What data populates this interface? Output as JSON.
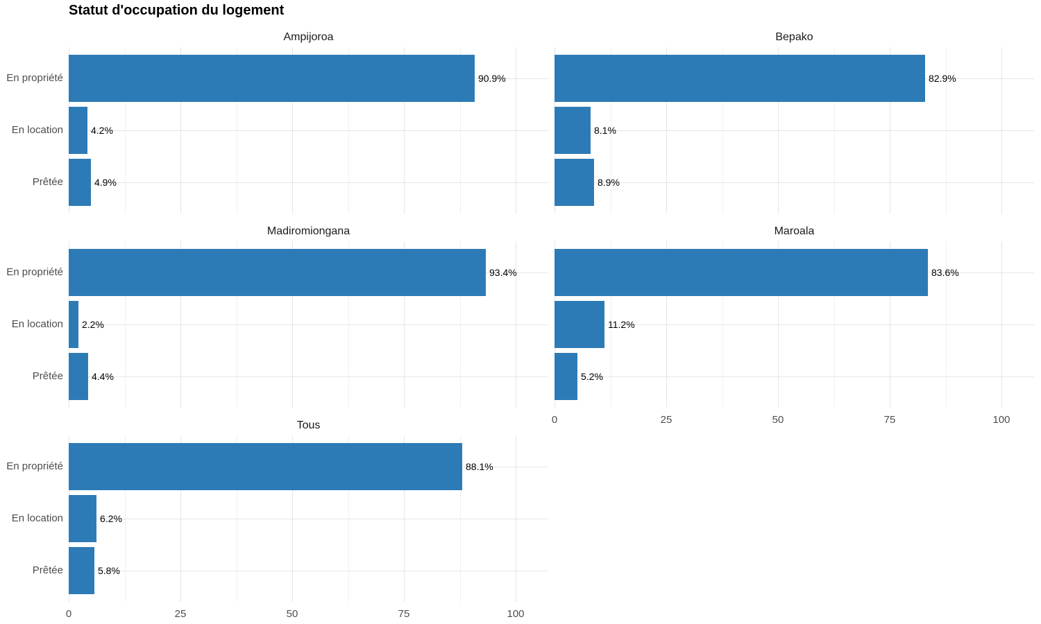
{
  "chart_data": {
    "type": "bar",
    "orientation": "horizontal",
    "title": "Statut d'occupation du logement",
    "categories": [
      "En propriété",
      "En location",
      "Prêtée"
    ],
    "facets": [
      {
        "name": "Ampijoroa",
        "values": [
          90.9,
          4.2,
          4.9
        ],
        "labels": [
          "90.9%",
          "4.2%",
          "4.9%"
        ]
      },
      {
        "name": "Bepako",
        "values": [
          82.9,
          8.1,
          8.9
        ],
        "labels": [
          "82.9%",
          "8.1%",
          "8.9%"
        ]
      },
      {
        "name": "Madiromiongana",
        "values": [
          93.4,
          2.2,
          4.4
        ],
        "labels": [
          "93.4%",
          "2.2%",
          "4.4%"
        ]
      },
      {
        "name": "Maroala",
        "values": [
          83.6,
          11.2,
          5.2
        ],
        "labels": [
          "83.6%",
          "11.2%",
          "5.2%"
        ]
      },
      {
        "name": "Tous",
        "values": [
          88.1,
          6.2,
          5.8
        ],
        "labels": [
          "88.1%",
          "6.2%",
          "5.8%"
        ]
      }
    ],
    "x_tick_labels": [
      "0",
      "25",
      "50",
      "75",
      "100"
    ],
    "x_tick_values": [
      0,
      25,
      50,
      75,
      100
    ],
    "x_minor_values": [
      12.5,
      37.5,
      62.5,
      87.5
    ],
    "xlim": [
      0,
      107.3
    ],
    "grid": true,
    "legend": "none",
    "colors": {
      "bar": "#2d7bb6",
      "grid_major": "#e5e5e5",
      "grid_minor": "#efefef",
      "axis_text": "#4d4d4d",
      "value_label": "#000000",
      "facet_title": "#1a1a1a",
      "title": "#000000",
      "background": "#ffffff"
    },
    "layout": {
      "columns": 2,
      "facet_grid": [
        [
          0,
          1
        ],
        [
          2,
          3
        ],
        [
          4,
          null
        ]
      ],
      "y_labels_on": [
        "Ampijoroa",
        "Madiromiongana",
        "Tous"
      ],
      "x_axis_on": [
        "Maroala",
        "Tous"
      ]
    }
  }
}
